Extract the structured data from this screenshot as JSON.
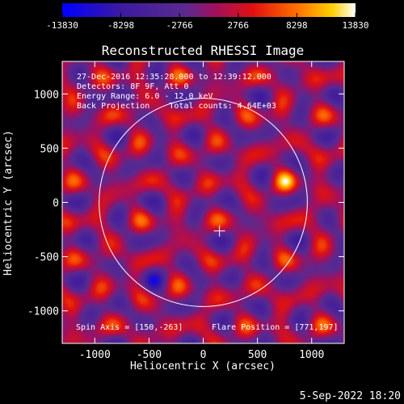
{
  "chart_data": {
    "type": "heatmap",
    "title": "Reconstructed RHESSI Image",
    "xlabel": "Heliocentric X (arcsec)",
    "ylabel": "Heliocentric Y (arcsec)",
    "xlim": [
      -1300,
      1300
    ],
    "ylim": [
      -1300,
      1300
    ],
    "x_ticks": [
      -1000,
      -500,
      0,
      500,
      1000
    ],
    "y_ticks": [
      -1000,
      -500,
      0,
      500,
      1000
    ],
    "colorbar": {
      "range": [
        -13830,
        13830
      ],
      "tick_values": [
        -13830,
        -8298,
        -2766,
        2766,
        8298,
        13830
      ],
      "tick_labels": [
        "-13830",
        "-8298",
        "-2766",
        "2766",
        "8298",
        "13830"
      ]
    },
    "info_lines": [
      "27-Dec-2016 12:35:28.000 to 12:39:12.000",
      "Detectors: 8F 9F, Att 0",
      "Energy Range: 6.0 - 12.0 keV",
      "Back Projection    Total counts: 4.64E+03"
    ],
    "spin_axis_text": "Spin Axis = [150,-263]",
    "flare_position_text": "Flare Position = [771,197]",
    "spin_axis": [
      150,
      -263
    ],
    "flare_position": [
      771,
      197
    ],
    "solar_disk_radius": 960,
    "grid": false,
    "colors": {
      "background": "#000000",
      "disk_outline": "#ffffff",
      "colormap": [
        "#0000ff",
        "#3c1aa0",
        "#5a2a90",
        "#a01060",
        "#e01010",
        "#ff7000",
        "#ffd000",
        "#ffffff"
      ]
    }
  },
  "footer": {
    "date_stamp": "5-Sep-2022 18:20"
  }
}
